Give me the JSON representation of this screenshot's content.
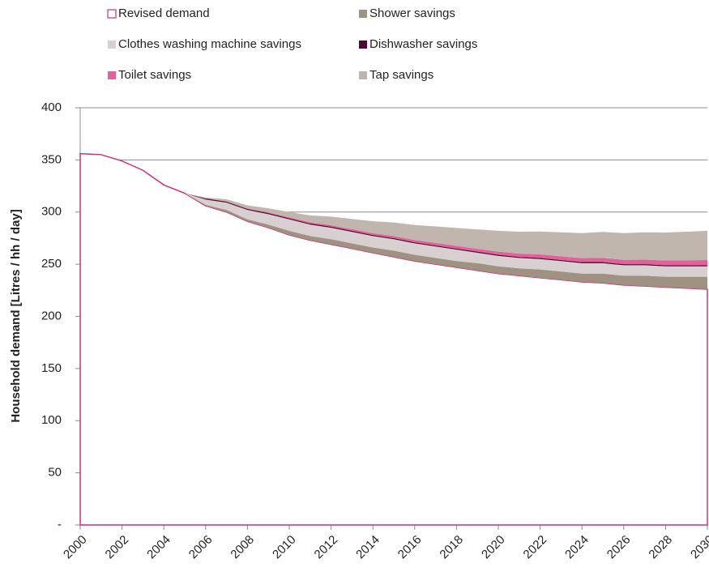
{
  "chart_data": {
    "type": "stacked_area",
    "y_label": "Household demand [Litres / hh / day]",
    "x": [
      2000,
      2001,
      2002,
      2003,
      2004,
      2005,
      2006,
      2007,
      2008,
      2009,
      2010,
      2011,
      2012,
      2013,
      2014,
      2015,
      2016,
      2017,
      2018,
      2019,
      2020,
      2021,
      2022,
      2023,
      2024,
      2025,
      2026,
      2027,
      2028,
      2029,
      2030
    ],
    "xlim": [
      2000,
      2030
    ],
    "xticks": [
      2000,
      2002,
      2004,
      2006,
      2008,
      2010,
      2012,
      2014,
      2016,
      2018,
      2020,
      2022,
      2024,
      2026,
      2028,
      2030
    ],
    "ylim": [
      0,
      400
    ],
    "yticks": [
      {
        "value": 0,
        "label": "-"
      },
      50,
      100,
      150,
      200,
      250,
      300,
      350,
      400
    ],
    "grid": true,
    "legend": "top",
    "series": [
      {
        "name": "Revised demand",
        "color": "#c8327a",
        "fill": "#ffffff",
        "values": [
          356,
          355,
          349,
          340,
          326,
          318,
          306,
          300,
          291,
          285,
          278,
          273,
          269,
          265,
          261,
          257,
          253,
          250,
          247,
          244,
          241,
          239,
          237,
          235,
          233,
          232,
          230,
          229,
          228,
          227,
          226
        ]
      },
      {
        "name": "Shower savings",
        "color": "#a09282",
        "values": [
          0,
          0,
          0,
          0,
          0,
          0,
          1,
          2,
          2,
          3,
          4,
          4,
          5,
          5,
          5,
          6,
          6,
          6,
          6,
          7,
          7,
          7,
          8,
          8,
          8,
          9,
          9,
          10,
          10,
          11,
          12
        ]
      },
      {
        "name": "Clothes washing machine savings",
        "color": "#d8d0d0",
        "values": [
          0,
          0,
          0,
          0,
          0,
          0,
          5,
          7,
          9,
          10,
          11,
          11,
          11,
          11,
          11,
          11,
          11,
          11,
          11,
          10,
          10,
          10,
          10,
          10,
          10,
          10,
          10,
          10,
          10,
          10,
          10
        ]
      },
      {
        "name": "Dishwasher savings",
        "color": "#4c0a2c",
        "values": [
          0,
          0,
          0,
          0,
          0,
          0,
          1,
          1,
          1,
          1,
          1,
          1,
          1,
          1,
          1,
          1,
          1,
          1,
          1,
          1,
          1,
          1,
          1,
          1,
          1,
          1,
          1,
          1,
          1,
          1,
          1
        ]
      },
      {
        "name": "Toilet savings",
        "color": "#e2609c",
        "values": [
          0,
          0,
          0,
          0,
          0,
          0,
          0,
          0.2,
          0.4,
          0.6,
          1,
          1.2,
          1.4,
          1.6,
          1.8,
          2,
          2.2,
          2.4,
          2.6,
          2.8,
          3,
          3.2,
          3.4,
          3.6,
          3.8,
          4,
          4.2,
          4.4,
          4.6,
          4.8,
          5
        ]
      },
      {
        "name": "Tap savings",
        "color": "#c0b6ae",
        "values": [
          0,
          0,
          0,
          0,
          0,
          0,
          1,
          2,
          3,
          4,
          5,
          6.6,
          8.2,
          9.8,
          11.4,
          13,
          14.4,
          15.8,
          17.2,
          18.6,
          20,
          21,
          22,
          23,
          24,
          25,
          25.6,
          26.2,
          26.8,
          27.4,
          28
        ]
      }
    ]
  }
}
